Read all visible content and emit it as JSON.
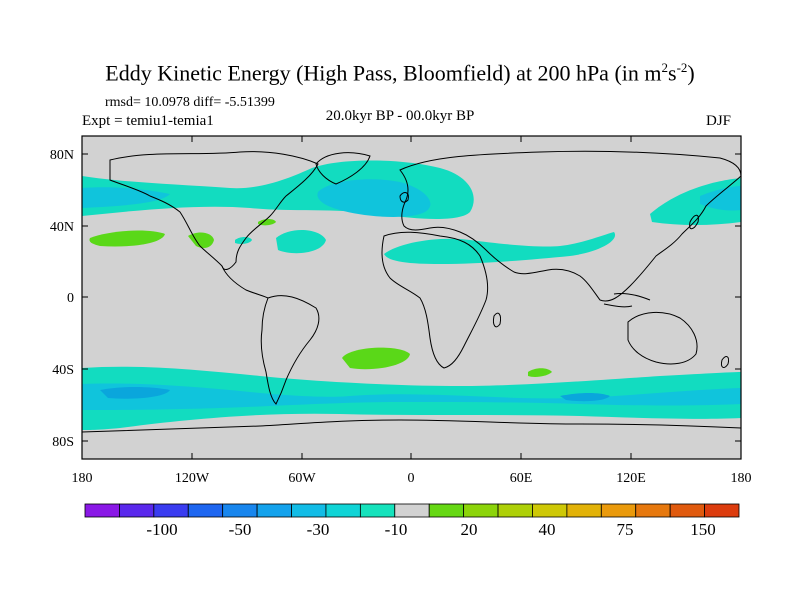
{
  "title": {
    "main": "Eddy Kinetic Energy (High Pass, Bloomfield) at 200 hPa (in m",
    "sup1": "2",
    "mid": "s",
    "sup2": "-2",
    "close": ")"
  },
  "subtitle": {
    "stats": "rmsd= 10.0978 diff= -5.51399",
    "expt": "Expt = temiu1-temia1",
    "period": "20.0kyr BP - 00.0kyr BP",
    "season": "DJF"
  },
  "colors": {
    "ocean_bg": "#d2d2d2",
    "light_neg": "#12dcc0",
    "mid_neg": "#10c4dc",
    "strong_neg": "#0aa6dc",
    "pos_low": "#5ad818",
    "coast": "#000000"
  },
  "axes": {
    "lat_labels": [
      "80N",
      "40N",
      "0",
      "40S",
      "80S"
    ],
    "lon_labels": [
      "180",
      "120W",
      "60W",
      "0",
      "60E",
      "120E",
      "180"
    ]
  },
  "colorbar": {
    "colors": [
      "#8a18e6",
      "#5a28ec",
      "#3a3cf0",
      "#1e66f0",
      "#1886ee",
      "#14a2ec",
      "#12bce6",
      "#10d4d6",
      "#16e2bc",
      "#d2d2d2",
      "#66d814",
      "#8cd40a",
      "#aed008",
      "#cec806",
      "#e2b208",
      "#ea9a0c",
      "#e6780e",
      "#e05a0e",
      "#dc3c0e"
    ],
    "labels": [
      "-100",
      "-50",
      "-30",
      "-10",
      "20",
      "40",
      "75",
      "150"
    ]
  }
}
